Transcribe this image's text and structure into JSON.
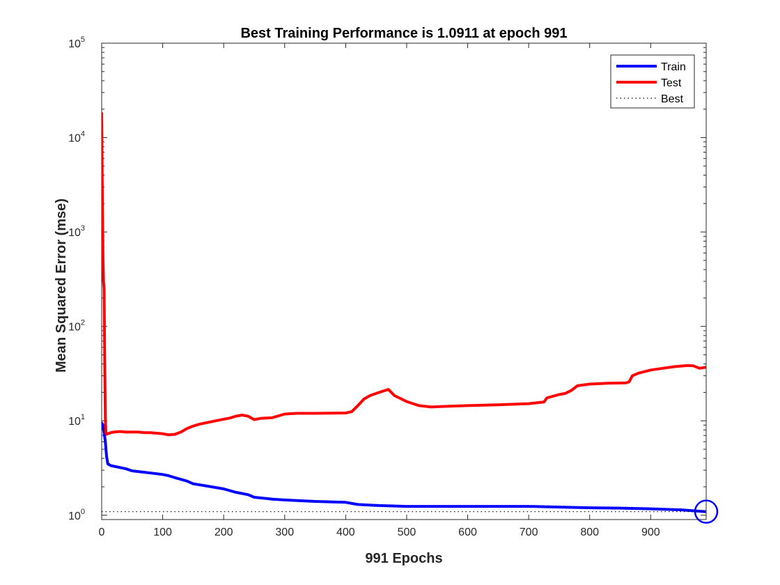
{
  "chart_data": {
    "type": "line",
    "title": "Best Training Performance is 1.0911 at epoch 991",
    "xlabel": "991 Epochs",
    "ylabel": "Mean Squared Error  (mse)",
    "xlim": [
      0,
      991
    ],
    "ylim": [
      0.9,
      100000
    ],
    "yscale": "log",
    "x_ticks": [
      0,
      100,
      200,
      300,
      400,
      500,
      600,
      700,
      800,
      900
    ],
    "y_ticks": [
      {
        "value": 1,
        "base": "10",
        "exp": "0"
      },
      {
        "value": 10,
        "base": "10",
        "exp": "1"
      },
      {
        "value": 100,
        "base": "10",
        "exp": "2"
      },
      {
        "value": 1000,
        "base": "10",
        "exp": "3"
      },
      {
        "value": 10000,
        "base": "10",
        "exp": "4"
      },
      {
        "value": 100000,
        "base": "10",
        "exp": "5"
      }
    ],
    "grid": false,
    "legend_position": "top-right",
    "series": [
      {
        "name": "Train",
        "color": "#0000ff",
        "x": [
          0,
          2,
          4,
          6,
          8,
          10,
          15,
          20,
          30,
          40,
          50,
          60,
          70,
          80,
          90,
          100,
          110,
          120,
          130,
          140,
          150,
          170,
          180,
          190,
          200,
          220,
          240,
          250,
          280,
          300,
          350,
          400,
          420,
          450,
          500,
          550,
          600,
          650,
          700,
          750,
          800,
          850,
          900,
          950,
          991
        ],
        "y": [
          9.5,
          9.0,
          7.5,
          6.0,
          4.2,
          3.5,
          3.35,
          3.3,
          3.2,
          3.1,
          2.95,
          2.9,
          2.85,
          2.8,
          2.75,
          2.7,
          2.62,
          2.5,
          2.4,
          2.3,
          2.15,
          2.05,
          2.0,
          1.95,
          1.9,
          1.75,
          1.65,
          1.55,
          1.48,
          1.45,
          1.4,
          1.37,
          1.3,
          1.27,
          1.24,
          1.24,
          1.24,
          1.24,
          1.24,
          1.22,
          1.2,
          1.19,
          1.17,
          1.14,
          1.0911
        ]
      },
      {
        "name": "Test",
        "color": "#ff0000",
        "x": [
          0,
          1,
          2,
          3,
          4,
          5,
          6,
          7,
          8,
          10,
          15,
          20,
          30,
          40,
          50,
          60,
          70,
          80,
          90,
          100,
          110,
          120,
          130,
          140,
          150,
          160,
          170,
          180,
          190,
          200,
          210,
          220,
          230,
          240,
          250,
          260,
          280,
          300,
          320,
          350,
          400,
          410,
          420,
          430,
          440,
          450,
          460,
          470,
          480,
          500,
          520,
          540,
          560,
          600,
          650,
          700,
          725,
          730,
          750,
          760,
          770,
          780,
          800,
          830,
          860,
          865,
          870,
          880,
          900,
          920,
          940,
          960,
          970,
          980,
          991
        ],
        "y": [
          18000,
          3000,
          600,
          300,
          250,
          40,
          10,
          7.5,
          7.2,
          7.3,
          7.5,
          7.6,
          7.7,
          7.6,
          7.6,
          7.6,
          7.5,
          7.5,
          7.4,
          7.3,
          7.1,
          7.2,
          7.6,
          8.3,
          8.8,
          9.2,
          9.5,
          9.8,
          10.1,
          10.4,
          10.7,
          11.2,
          11.5,
          11.2,
          10.3,
          10.6,
          10.8,
          11.8,
          12.0,
          12.0,
          12.1,
          12.5,
          14.5,
          17.0,
          18.5,
          19.5,
          20.5,
          21.5,
          18.5,
          16.0,
          14.5,
          14.0,
          14.2,
          14.5,
          14.8,
          15.2,
          15.8,
          17.5,
          19.0,
          19.5,
          21.0,
          23.5,
          24.5,
          25.0,
          25.2,
          26.0,
          30.0,
          32.0,
          34.5,
          36.0,
          37.5,
          38.5,
          38.2,
          36.0,
          37.0
        ]
      },
      {
        "name": "Best",
        "color": "#000000",
        "style": "dotted",
        "value": 1.0911
      }
    ],
    "best_epoch": 991,
    "best_value": 1.0911,
    "best_marker_color": "#0000ff"
  }
}
